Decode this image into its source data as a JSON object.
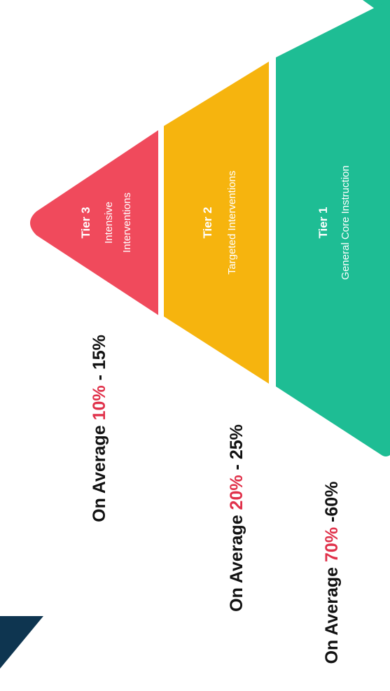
{
  "colors": {
    "tier3": "#f04a5c",
    "tier2": "#f6b40e",
    "tier1": "#1ebd94",
    "corner_navy": "#0e3550",
    "percent_accent": "#e0314a"
  },
  "tiers": [
    {
      "title": "Tier 3",
      "desc_line1": "Intensive",
      "desc_line2": "Interventions"
    },
    {
      "title": "Tier 2",
      "desc_line1": "Targeted Interventions"
    },
    {
      "title": "Tier 1",
      "desc_line1": "General Core Instruction"
    }
  ],
  "averages": [
    {
      "prefix": "On Average ",
      "percent": "10%",
      "suffix": " - 15%"
    },
    {
      "prefix": "On Average ",
      "percent": "20%",
      "suffix": " - 25%"
    },
    {
      "prefix": "On Average ",
      "percent": "70%",
      "suffix": " -60%"
    }
  ]
}
